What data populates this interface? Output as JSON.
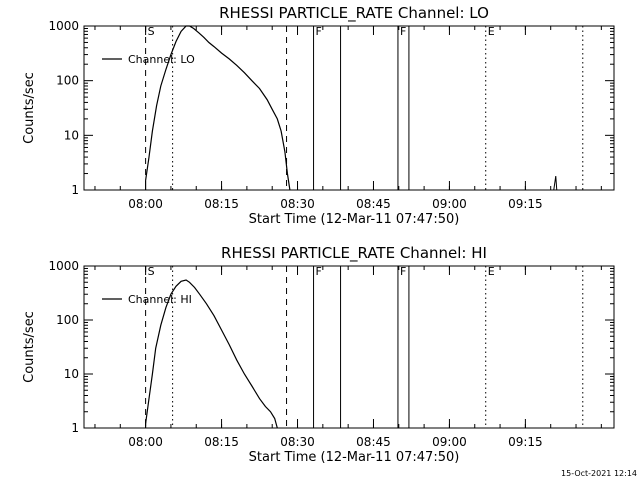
{
  "footer": {
    "stamp": "15-Oct-2021 12:14"
  },
  "chart_data": [
    {
      "type": "line",
      "title": "RHESSI PARTICLE_RATE Channel: LO",
      "xlabel": "Start Time (12-Mar-11 07:47:50)",
      "ylabel": "Counts/sec",
      "yscale": "log",
      "ylim": [
        1,
        1000
      ],
      "xlim": [
        "07:47:50",
        "09:32:30"
      ],
      "x_ticks": [
        "08:00",
        "08:15",
        "08:30",
        "08:45",
        "09:00",
        "09:15"
      ],
      "y_ticks": [
        "1",
        "10",
        "100",
        "1000"
      ],
      "legend": {
        "position": "top-left",
        "label": "Channel: LO"
      },
      "series": [
        {
          "name": "Channel: LO",
          "x": [
            "08:00:00",
            "08:00:40",
            "08:01:20",
            "08:02:10",
            "08:03:00",
            "08:04:00",
            "08:05:00",
            "08:06:00",
            "08:07:00",
            "08:08:00",
            "08:08:40",
            "08:09:30",
            "08:10:30",
            "08:11:30",
            "08:12:30",
            "08:13:30",
            "08:15:00",
            "08:16:30",
            "08:18:00",
            "08:19:30",
            "08:21:00",
            "08:22:30",
            "08:24:00",
            "08:25:00",
            "08:26:00",
            "08:26:45",
            "08:27:30",
            "08:28:00",
            "08:28:30"
          ],
          "y": [
            1.5,
            4,
            12,
            35,
            80,
            160,
            300,
            520,
            800,
            1000,
            1000,
            900,
            750,
            620,
            500,
            420,
            320,
            250,
            190,
            140,
            100,
            72,
            45,
            30,
            20,
            12,
            5,
            2,
            1
          ]
        }
      ],
      "spikes": [
        {
          "x": "09:21:00",
          "y": 1.8
        }
      ],
      "event_lines": [
        {
          "label": "S",
          "x": "08:00:00",
          "style": "dashed"
        },
        {
          "label": "",
          "x": "08:05:20",
          "style": "dotted"
        },
        {
          "label": "",
          "x": "08:27:50",
          "style": "dashed"
        },
        {
          "label": "F",
          "x": "08:33:10",
          "style": "solid"
        },
        {
          "label": "",
          "x": "08:38:30",
          "style": "solid"
        },
        {
          "label": "F",
          "x": "08:49:50",
          "style": "solid"
        },
        {
          "label": "",
          "x": "08:52:00",
          "style": "solid"
        },
        {
          "label": "E",
          "x": "09:07:10",
          "style": "dotted"
        },
        {
          "label": "",
          "x": "09:26:20",
          "style": "dotted"
        }
      ]
    },
    {
      "type": "line",
      "title": "RHESSI PARTICLE_RATE Channel: HI",
      "xlabel": "Start Time (12-Mar-11 07:47:50)",
      "ylabel": "Counts/sec",
      "yscale": "log",
      "ylim": [
        1,
        1000
      ],
      "xlim": [
        "07:47:50",
        "09:32:30"
      ],
      "x_ticks": [
        "08:00",
        "08:15",
        "08:30",
        "08:45",
        "09:00",
        "09:15"
      ],
      "y_ticks": [
        "1",
        "10",
        "100",
        "1000"
      ],
      "legend": {
        "position": "top-left",
        "label": "Channel: HI"
      },
      "series": [
        {
          "name": "Channel: HI",
          "x": [
            "08:00:00",
            "08:00:40",
            "08:01:20",
            "08:02:00",
            "08:03:00",
            "08:04:00",
            "08:05:00",
            "08:06:00",
            "08:07:00",
            "08:08:00",
            "08:08:40",
            "08:09:40",
            "08:10:40",
            "08:12:00",
            "08:13:30",
            "08:15:00",
            "08:16:30",
            "08:18:00",
            "08:19:30",
            "08:21:00",
            "08:22:30",
            "08:23:40",
            "08:24:40",
            "08:25:30",
            "08:26:00"
          ],
          "y": [
            1.2,
            3.5,
            10,
            30,
            80,
            170,
            300,
            420,
            520,
            550,
            500,
            400,
            300,
            200,
            120,
            65,
            35,
            18,
            10,
            6,
            3.5,
            2.5,
            2,
            1.5,
            1
          ]
        }
      ],
      "spikes": [],
      "event_lines": [
        {
          "label": "S",
          "x": "08:00:00",
          "style": "dashed"
        },
        {
          "label": "",
          "x": "08:05:20",
          "style": "dotted"
        },
        {
          "label": "",
          "x": "08:27:50",
          "style": "dashed"
        },
        {
          "label": "F",
          "x": "08:33:10",
          "style": "solid"
        },
        {
          "label": "",
          "x": "08:38:30",
          "style": "solid"
        },
        {
          "label": "F",
          "x": "08:49:50",
          "style": "solid"
        },
        {
          "label": "",
          "x": "08:52:00",
          "style": "solid"
        },
        {
          "label": "E",
          "x": "09:07:10",
          "style": "dotted"
        },
        {
          "label": "",
          "x": "09:26:20",
          "style": "dotted"
        }
      ]
    }
  ]
}
